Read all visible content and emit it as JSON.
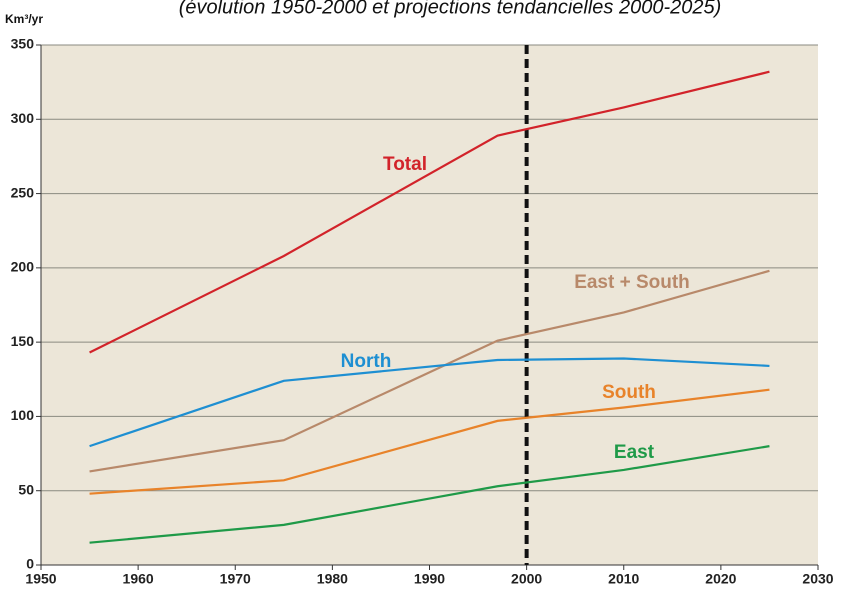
{
  "chart_data": {
    "type": "line",
    "subtitle": "(évolution 1950-2000 et projections tendancielles 2000-2025)",
    "y_label": "Km³/yr",
    "x": [
      1955,
      1975,
      1997,
      2010,
      2025
    ],
    "series": [
      {
        "name": "Total",
        "color": "#d2232a",
        "values": [
          143,
          208,
          289,
          308,
          332
        ]
      },
      {
        "name": "East + South",
        "color": "#b8896a",
        "values": [
          63,
          84,
          151,
          170,
          198
        ]
      },
      {
        "name": "North",
        "color": "#1e8fd2",
        "values": [
          80,
          124,
          138,
          139,
          134
        ]
      },
      {
        "name": "South",
        "color": "#e8832a",
        "values": [
          48,
          57,
          97,
          106,
          118
        ]
      },
      {
        "name": "East",
        "color": "#1f9a48",
        "values": [
          15,
          27,
          53,
          64,
          80
        ]
      }
    ],
    "xlim": [
      1950,
      2030
    ],
    "xticks": [
      1950,
      1960,
      1970,
      1980,
      1990,
      2000,
      2010,
      2020,
      2030
    ],
    "ylim": [
      0,
      350
    ],
    "yticks": [
      0,
      50,
      100,
      150,
      200,
      250,
      300,
      350
    ],
    "vline": 2000,
    "grid": true,
    "background": "#ece6d8"
  }
}
